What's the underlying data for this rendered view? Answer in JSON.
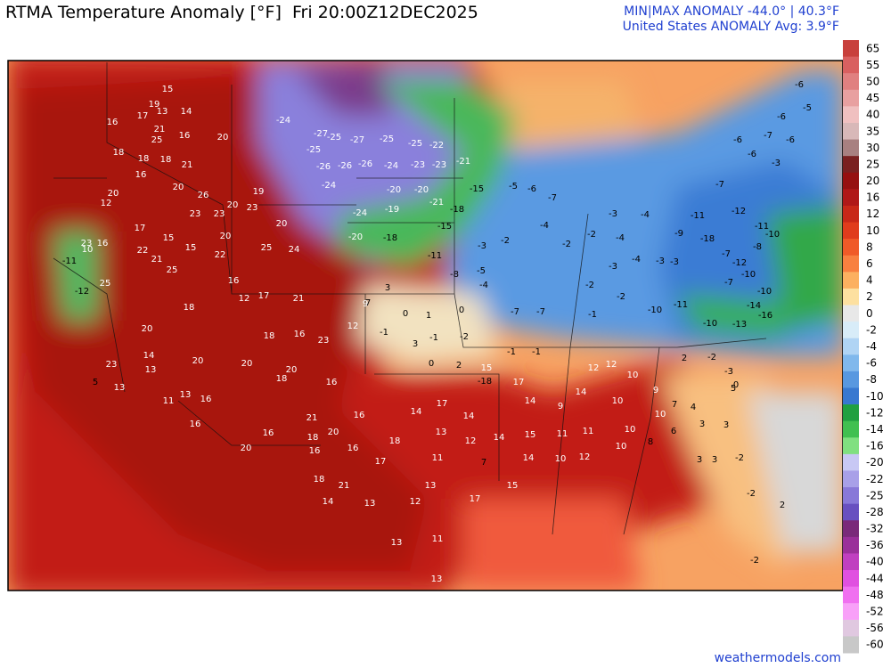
{
  "header": {
    "title": "RTMA Temperature Anomaly [°F]  Fri 20:00Z12DEC2025",
    "minmax": "MIN|MAX ANOMALY -44.0° | 40.3°F",
    "average": "United States ANOMALY Avg: 3.9°F"
  },
  "footer": "weathermodels.com",
  "colorbar": {
    "levels": [
      65,
      55,
      50,
      45,
      40,
      35,
      30,
      25,
      20,
      16,
      12,
      10,
      8,
      6,
      4,
      2,
      0,
      -2,
      -4,
      -6,
      -8,
      -10,
      -12,
      -14,
      -16,
      -20,
      -22,
      -25,
      -28,
      -32,
      -36,
      -40,
      -44,
      -48,
      -52,
      -56,
      -60
    ],
    "colors": [
      "#c8403c",
      "#d96060",
      "#e08080",
      "#e8a0a0",
      "#f0c0c0",
      "#d8b8b8",
      "#a88080",
      "#7a2020",
      "#961010",
      "#b01818",
      "#c82818",
      "#e03c1c",
      "#f05a28",
      "#f88040",
      "#fcb060",
      "#fde0a0",
      "#e8e8e8",
      "#d8ecf8",
      "#b0d4f4",
      "#80b8ec",
      "#5898e0",
      "#3878d0",
      "#20a040",
      "#40c050",
      "#80e080",
      "#c8c8f4",
      "#a8a0e8",
      "#8878d8",
      "#6850c0",
      "#7a2a7a",
      "#9a309a",
      "#c040c0",
      "#e050e0",
      "#f070f0",
      "#f8a0f8",
      "#e0c8e0",
      "#c8c8c8"
    ]
  },
  "map": {
    "station_values": [
      15,
      19,
      13,
      17,
      14,
      16,
      21,
      25,
      16,
      20,
      18,
      18,
      18,
      21,
      16,
      20,
      26,
      20,
      12,
      23,
      23,
      20,
      19,
      23,
      20,
      17,
      15,
      15,
      22,
      21,
      25,
      20,
      22,
      25,
      24,
      16,
      12,
      17,
      21,
      18,
      18,
      16,
      23,
      20,
      14,
      13,
      20,
      20,
      20,
      18,
      16,
      13,
      16,
      11,
      16,
      20,
      16,
      21,
      18,
      20,
      16,
      16,
      16,
      17,
      18,
      21,
      14,
      13,
      18,
      13,
      12,
      13,
      13,
      11,
      14,
      17,
      14,
      13,
      12,
      11,
      7,
      15,
      -18,
      17,
      14,
      14,
      15,
      14,
      15,
      17,
      9,
      14,
      12,
      12,
      10,
      11,
      11,
      10,
      12,
      10,
      10,
      10,
      8,
      10,
      7,
      9,
      6,
      4,
      3,
      3,
      -24,
      -27,
      -25,
      -27,
      -25,
      -25,
      -22,
      -25,
      -26,
      -26,
      -26,
      -24,
      -23,
      -23,
      -24,
      -20,
      -20,
      -21,
      -19,
      -18,
      -24,
      -15,
      -20,
      -18,
      -15,
      -11,
      -21,
      -3,
      -2,
      -5,
      -8,
      -5,
      -6,
      -7,
      -4,
      -2,
      -2,
      -3,
      -4,
      -4,
      -3,
      -3,
      -4,
      -11,
      -9,
      -18,
      -7,
      -12,
      -8,
      -10,
      -7,
      -10,
      -10,
      -14,
      -13,
      -16,
      -10,
      -10,
      -11,
      -7,
      -7,
      -1,
      -2,
      -3,
      -1,
      -1,
      -4,
      -2,
      -6,
      -6,
      -6,
      -5,
      -7,
      -3,
      -6,
      -6,
      -7,
      -12,
      -11,
      3,
      0,
      1,
      0,
      -1,
      3,
      -1,
      -2,
      0,
      2,
      9,
      12,
      7,
      10,
      -11,
      -12,
      23,
      16,
      25,
      23,
      13,
      5,
      2,
      -2,
      -3,
      5,
      0,
      3,
      3,
      -2,
      -2,
      2,
      -2
    ]
  }
}
